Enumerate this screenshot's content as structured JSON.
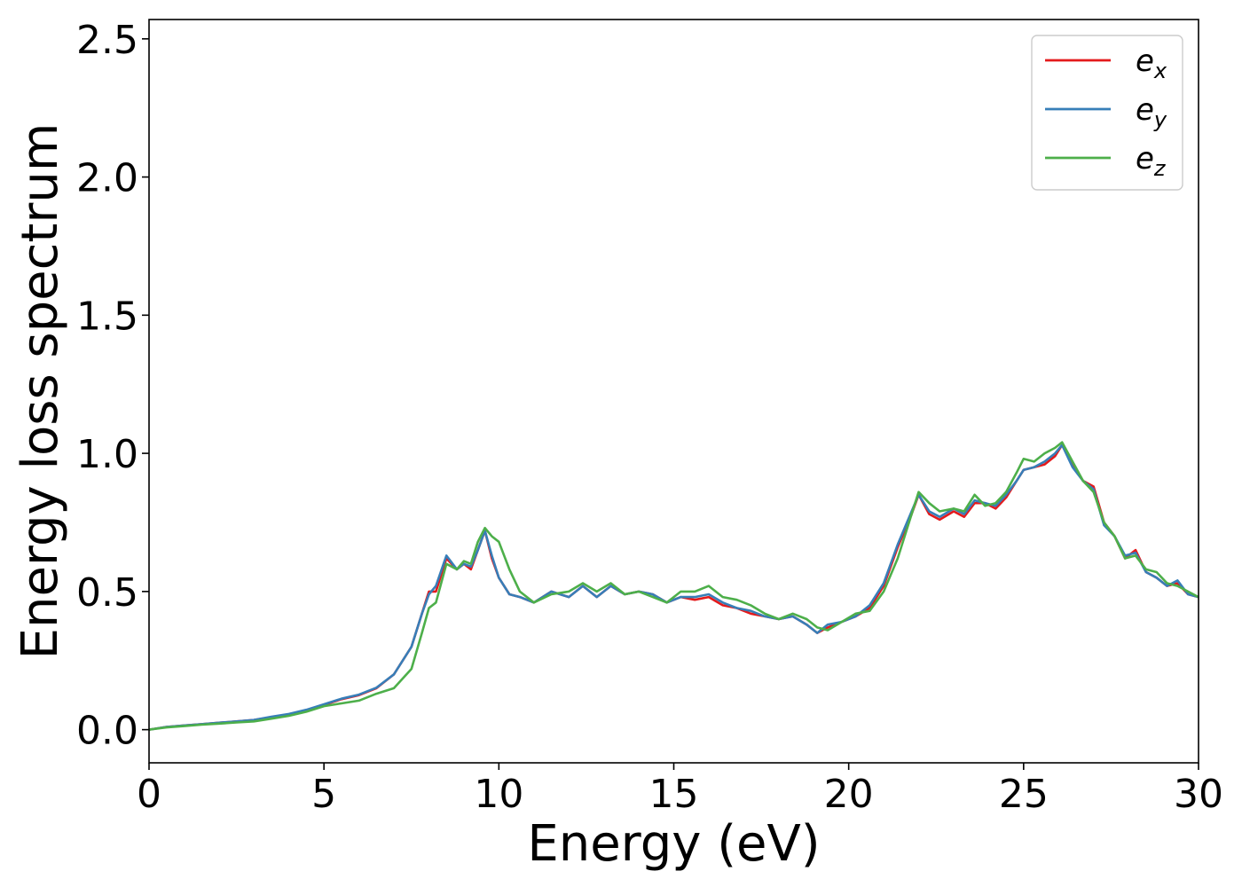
{
  "chart_data": {
    "type": "line",
    "title": "",
    "xlabel": "Energy (eV)",
    "ylabel": "Energy loss spectrum",
    "xlim": [
      0,
      30
    ],
    "ylim": [
      -0.12,
      2.57
    ],
    "xticks": [
      "0",
      "5",
      "10",
      "15",
      "20",
      "25",
      "30"
    ],
    "yticks": [
      "0.0",
      "0.5",
      "1.0",
      "1.5",
      "2.0",
      "2.5"
    ],
    "grid": false,
    "legend_position": "top-right",
    "series": [
      {
        "name": "e_x",
        "legend_base": "e",
        "legend_sub": "x",
        "color": "#e41a1c",
        "x": [
          0,
          0.5,
          1,
          1.5,
          2,
          2.5,
          3,
          3.5,
          4,
          4.5,
          5,
          5.5,
          6,
          6.5,
          7,
          7.5,
          7.8,
          8,
          8.2,
          8.5,
          8.8,
          9,
          9.2,
          9.4,
          9.6,
          9.8,
          10,
          10.3,
          10.6,
          11,
          11.5,
          12,
          12.4,
          12.8,
          13.2,
          13.6,
          14,
          14.4,
          14.8,
          15.2,
          15.6,
          16,
          16.4,
          16.8,
          17.2,
          17.6,
          18,
          18.4,
          18.8,
          19.1,
          19.4,
          19.8,
          20.2,
          20.6,
          21,
          21.4,
          21.8,
          22,
          22.3,
          22.6,
          23,
          23.3,
          23.6,
          23.9,
          24.2,
          24.5,
          24.8,
          25,
          25.3,
          25.6,
          25.9,
          26.1,
          26.4,
          26.7,
          27,
          27.3,
          27.6,
          27.9,
          28.2,
          28.5,
          28.8,
          29.1,
          29.4,
          29.7,
          30
        ],
        "y": [
          0,
          0.01,
          0.015,
          0.02,
          0.025,
          0.03,
          0.035,
          0.045,
          0.055,
          0.07,
          0.09,
          0.11,
          0.125,
          0.15,
          0.2,
          0.3,
          0.42,
          0.5,
          0.5,
          0.62,
          0.58,
          0.6,
          0.58,
          0.65,
          0.72,
          0.62,
          0.55,
          0.49,
          0.48,
          0.46,
          0.5,
          0.48,
          0.52,
          0.48,
          0.52,
          0.49,
          0.5,
          0.49,
          0.46,
          0.48,
          0.47,
          0.48,
          0.45,
          0.44,
          0.42,
          0.41,
          0.4,
          0.41,
          0.38,
          0.35,
          0.37,
          0.39,
          0.41,
          0.44,
          0.52,
          0.66,
          0.78,
          0.85,
          0.78,
          0.76,
          0.79,
          0.77,
          0.82,
          0.82,
          0.8,
          0.84,
          0.9,
          0.94,
          0.95,
          0.96,
          0.99,
          1.03,
          0.96,
          0.9,
          0.88,
          0.75,
          0.7,
          0.62,
          0.65,
          0.57,
          0.55,
          0.52,
          0.53,
          0.49,
          0.48
        ]
      },
      {
        "name": "e_y",
        "legend_base": "e",
        "legend_sub": "y",
        "color": "#377eb8",
        "x": [
          0,
          0.5,
          1,
          1.5,
          2,
          2.5,
          3,
          3.5,
          4,
          4.5,
          5,
          5.5,
          6,
          6.5,
          7,
          7.5,
          7.8,
          8,
          8.2,
          8.5,
          8.8,
          9,
          9.2,
          9.4,
          9.6,
          9.8,
          10,
          10.3,
          10.6,
          11,
          11.5,
          12,
          12.4,
          12.8,
          13.2,
          13.6,
          14,
          14.4,
          14.8,
          15.2,
          15.6,
          16,
          16.4,
          16.8,
          17.2,
          17.6,
          18,
          18.4,
          18.8,
          19.1,
          19.4,
          19.8,
          20.2,
          20.6,
          21,
          21.4,
          21.8,
          22,
          22.3,
          22.6,
          23,
          23.3,
          23.6,
          23.9,
          24.2,
          24.5,
          24.8,
          25,
          25.3,
          25.6,
          25.9,
          26.1,
          26.4,
          26.7,
          27,
          27.3,
          27.6,
          27.9,
          28.2,
          28.5,
          28.8,
          29.1,
          29.4,
          29.7,
          30
        ],
        "y": [
          0,
          0.01,
          0.015,
          0.02,
          0.025,
          0.03,
          0.035,
          0.047,
          0.057,
          0.072,
          0.092,
          0.112,
          0.127,
          0.152,
          0.2,
          0.3,
          0.42,
          0.49,
          0.52,
          0.63,
          0.58,
          0.6,
          0.59,
          0.65,
          0.72,
          0.63,
          0.55,
          0.49,
          0.48,
          0.46,
          0.5,
          0.48,
          0.52,
          0.48,
          0.52,
          0.49,
          0.5,
          0.49,
          0.46,
          0.48,
          0.48,
          0.49,
          0.46,
          0.44,
          0.43,
          0.41,
          0.4,
          0.41,
          0.38,
          0.35,
          0.38,
          0.39,
          0.41,
          0.45,
          0.53,
          0.67,
          0.79,
          0.85,
          0.79,
          0.77,
          0.8,
          0.78,
          0.83,
          0.82,
          0.81,
          0.85,
          0.9,
          0.94,
          0.95,
          0.97,
          1.0,
          1.03,
          0.95,
          0.9,
          0.87,
          0.74,
          0.7,
          0.63,
          0.64,
          0.57,
          0.55,
          0.52,
          0.54,
          0.49,
          0.48
        ]
      },
      {
        "name": "e_z",
        "legend_base": "e",
        "legend_sub": "z",
        "color": "#4daf4a",
        "x": [
          0,
          0.5,
          1,
          1.5,
          2,
          2.5,
          3,
          3.5,
          4,
          4.5,
          5,
          5.5,
          6,
          6.5,
          7,
          7.5,
          7.8,
          8,
          8.2,
          8.5,
          8.8,
          9,
          9.2,
          9.4,
          9.6,
          9.8,
          10,
          10.3,
          10.6,
          11,
          11.5,
          12,
          12.4,
          12.8,
          13.2,
          13.6,
          14,
          14.4,
          14.8,
          15.2,
          15.6,
          16,
          16.4,
          16.8,
          17.2,
          17.6,
          18,
          18.4,
          18.8,
          19.1,
          19.4,
          19.8,
          20.2,
          20.6,
          21,
          21.4,
          21.8,
          22,
          22.3,
          22.6,
          23,
          23.3,
          23.6,
          23.9,
          24.2,
          24.5,
          24.8,
          25,
          25.3,
          25.6,
          25.9,
          26.1,
          26.4,
          26.7,
          27,
          27.3,
          27.6,
          27.9,
          28.2,
          28.5,
          28.8,
          29.1,
          29.4,
          29.7,
          30
        ],
        "y": [
          0,
          0.008,
          0.013,
          0.018,
          0.022,
          0.026,
          0.03,
          0.04,
          0.05,
          0.065,
          0.085,
          0.095,
          0.105,
          0.13,
          0.15,
          0.22,
          0.35,
          0.44,
          0.46,
          0.6,
          0.58,
          0.61,
          0.6,
          0.68,
          0.73,
          0.7,
          0.68,
          0.58,
          0.5,
          0.46,
          0.49,
          0.5,
          0.53,
          0.5,
          0.53,
          0.49,
          0.5,
          0.48,
          0.46,
          0.5,
          0.5,
          0.52,
          0.48,
          0.47,
          0.45,
          0.42,
          0.4,
          0.42,
          0.4,
          0.37,
          0.36,
          0.39,
          0.42,
          0.43,
          0.5,
          0.62,
          0.78,
          0.86,
          0.82,
          0.79,
          0.8,
          0.79,
          0.85,
          0.81,
          0.82,
          0.86,
          0.93,
          0.98,
          0.97,
          1.0,
          1.02,
          1.04,
          0.97,
          0.9,
          0.86,
          0.75,
          0.7,
          0.62,
          0.63,
          0.58,
          0.57,
          0.53,
          0.52,
          0.5,
          0.48
        ]
      }
    ]
  }
}
